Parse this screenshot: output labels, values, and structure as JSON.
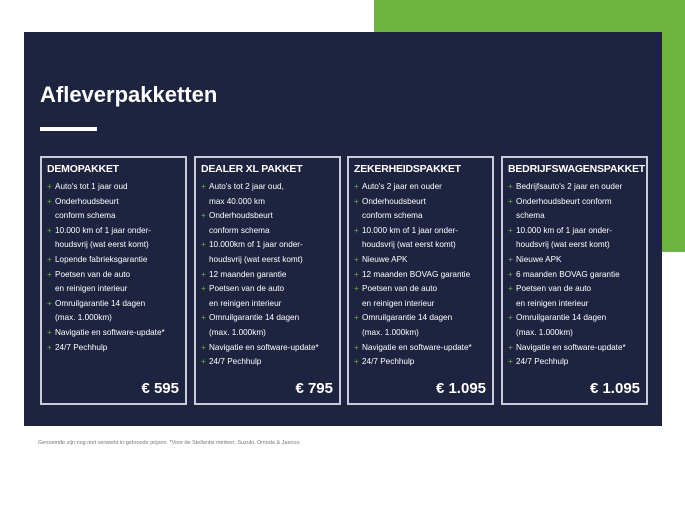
{
  "title": "Afleverpakketten",
  "packages": [
    {
      "name": "DEMOPAKKET",
      "price": "€ 595",
      "items": [
        [
          "Auto's tot 1 jaar oud"
        ],
        [
          "Onderhoudsbeurt",
          "conform schema"
        ],
        [
          "10.000 km of 1 jaar onder-",
          "houdsvrij (wat eerst komt)"
        ],
        [
          "Lopende fabrieksgarantie"
        ],
        [
          "Poetsen van de auto",
          "en reinigen interieur"
        ],
        [
          "Omruilgarantie 14 dagen",
          "(max. 1.000km)"
        ],
        [
          "Navigatie en software-update*"
        ],
        [
          "24/7 Pechhulp"
        ]
      ]
    },
    {
      "name": "DEALER XL PAKKET",
      "price": "€ 795",
      "items": [
        [
          "Auto's tot 2 jaar oud,",
          "max 40.000 km"
        ],
        [
          "Onderhoudsbeurt",
          "conform schema"
        ],
        [
          "10.000km of 1 jaar onder-",
          "houdsvrij (wat eerst komt)"
        ],
        [
          "12 maanden garantie"
        ],
        [
          "Poetsen van de auto",
          "en reinigen interieur"
        ],
        [
          "Omruilgarantie 14 dagen",
          "(max. 1.000km)"
        ],
        [
          "Navigatie en software-update*"
        ],
        [
          "24/7 Pechhulp"
        ]
      ]
    },
    {
      "name": "ZEKERHEIDSPAKKET",
      "price": "€ 1.095",
      "items": [
        [
          "Auto's 2 jaar en ouder"
        ],
        [
          "Onderhoudsbeurt",
          "conform schema"
        ],
        [
          "10.000 km of 1 jaar onder-",
          "houdsvrij (wat eerst komt)"
        ],
        [
          "Nieuwe APK"
        ],
        [
          "12 maanden BOVAG garantie"
        ],
        [
          "Poetsen van de auto",
          "en reinigen interieur"
        ],
        [
          "Omruilgarantie 14 dagen",
          "(max. 1.000km)"
        ],
        [
          "Navigatie en software-update*"
        ],
        [
          "24/7 Pechhulp"
        ]
      ]
    },
    {
      "name": "BEDRIJFSWAGENSPAKKET",
      "price": "€ 1.095",
      "items": [
        [
          "Bedrijfsauto's 2 jaar en ouder"
        ],
        [
          "Onderhoudsbeurt conform",
          "schema"
        ],
        [
          "10.000 km of 1 jaar onder-",
          "houdsvrij (wat eerst komt)"
        ],
        [
          "Nieuwe APK"
        ],
        [
          "6 maanden BOVAG garantie"
        ],
        [
          "Poetsen van de auto",
          "en reinigen interieur"
        ],
        [
          "Omruilgarantie 14 dagen",
          "(max. 1.000km)"
        ],
        [
          "Navigatie en software-update*"
        ],
        [
          "24/7 Pechhulp"
        ]
      ]
    }
  ],
  "footnote": "Genoemde zijn nog niet verwerkt in getoonde prijzen. *Voor de Stellantis merken, Suzuki, Omoda & Jaecoo.",
  "colors": {
    "panel": "#1e2340",
    "accent": "#6db33f"
  }
}
